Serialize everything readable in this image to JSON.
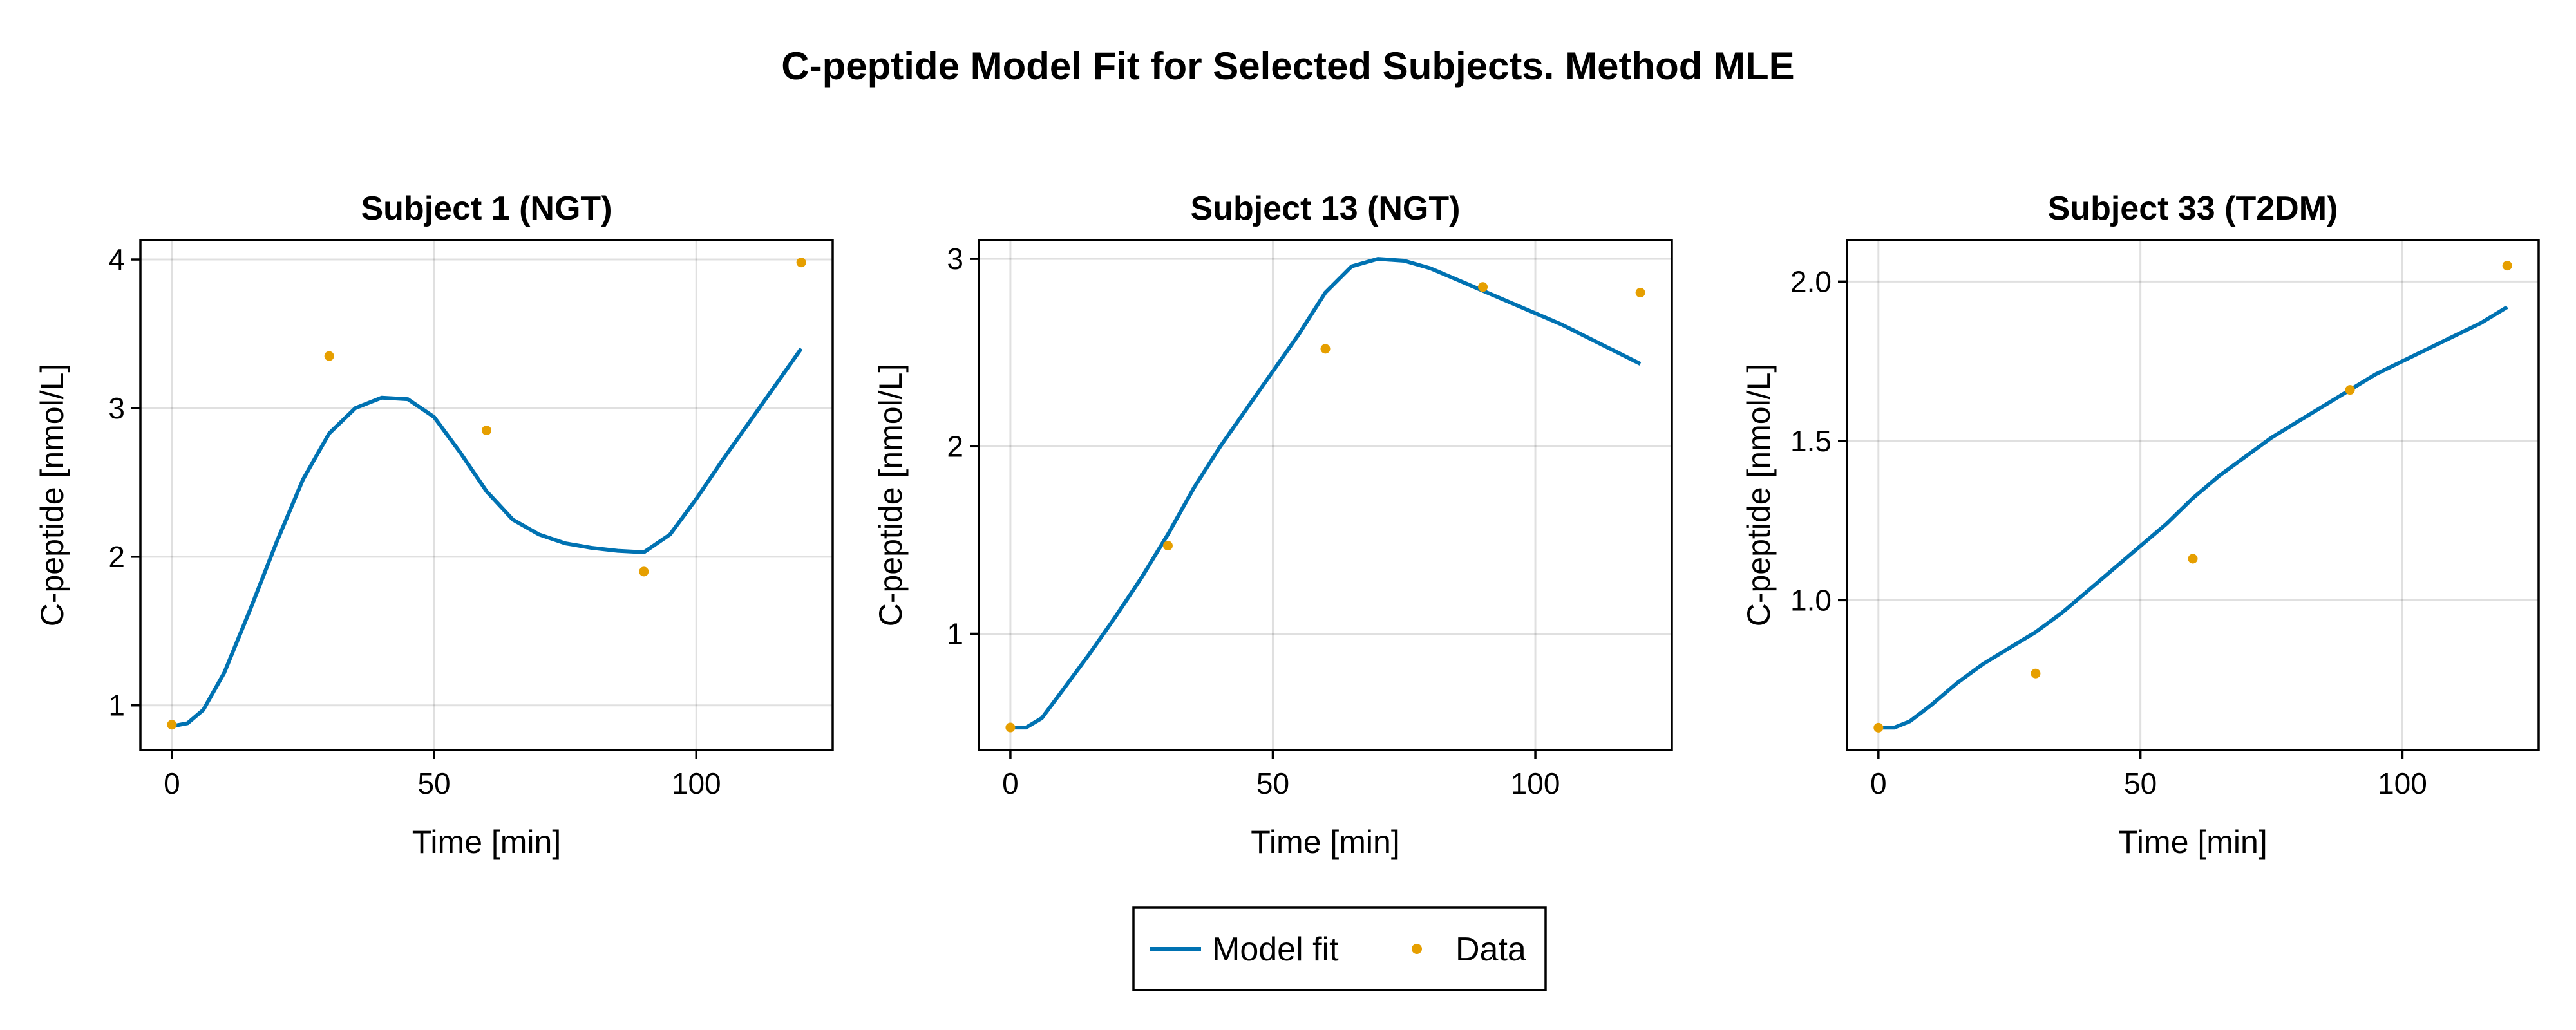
{
  "title": "C-peptide Model Fit for Selected Subjects. Method MLE",
  "colors": {
    "model": "#0072b2",
    "data": "#e69f00"
  },
  "legend": {
    "placement": "bottom-center",
    "entries": [
      "Model fit",
      "Data"
    ]
  },
  "chart_data": [
    {
      "type": "line",
      "title": "Subject 1 (NGT)",
      "xlabel": "Time [min]",
      "ylabel": "C-peptide [nmol/L]",
      "xlim": [
        -6,
        126
      ],
      "ylim": [
        0.7,
        4.13
      ],
      "xticks": [
        0,
        50,
        100
      ],
      "yticks": [
        1,
        2,
        3,
        4
      ],
      "grid": true,
      "series": [
        {
          "name": "Model fit",
          "kind": "line",
          "x": [
            0,
            3,
            6,
            10,
            15,
            20,
            25,
            30,
            35,
            40,
            45,
            50,
            55,
            60,
            65,
            70,
            75,
            80,
            85,
            90,
            95,
            100,
            105,
            110,
            115,
            120
          ],
          "y": [
            0.86,
            0.88,
            0.97,
            1.22,
            1.65,
            2.1,
            2.52,
            2.83,
            3.0,
            3.07,
            3.06,
            2.94,
            2.7,
            2.44,
            2.25,
            2.15,
            2.09,
            2.06,
            2.04,
            2.03,
            2.15,
            2.39,
            2.65,
            2.9,
            3.15,
            3.4
          ]
        },
        {
          "name": "Data",
          "kind": "scatter",
          "x": [
            0,
            30,
            60,
            90,
            120
          ],
          "y": [
            0.87,
            3.35,
            2.85,
            1.9,
            3.98
          ]
        }
      ]
    },
    {
      "type": "line",
      "title": "Subject 13 (NGT)",
      "xlabel": "Time [min]",
      "ylabel": "C-peptide [nmol/L]",
      "xlim": [
        -6,
        126
      ],
      "ylim": [
        0.38,
        3.1
      ],
      "xticks": [
        0,
        50,
        100
      ],
      "yticks": [
        1,
        2,
        3
      ],
      "grid": true,
      "series": [
        {
          "name": "Model fit",
          "kind": "line",
          "x": [
            0,
            3,
            6,
            10,
            15,
            20,
            25,
            30,
            35,
            40,
            45,
            50,
            55,
            60,
            65,
            70,
            75,
            80,
            85,
            90,
            95,
            100,
            105,
            110,
            115,
            120
          ],
          "y": [
            0.5,
            0.5,
            0.55,
            0.7,
            0.89,
            1.09,
            1.3,
            1.53,
            1.78,
            2.0,
            2.2,
            2.4,
            2.6,
            2.82,
            2.96,
            3.0,
            2.99,
            2.95,
            2.89,
            2.83,
            2.77,
            2.71,
            2.65,
            2.58,
            2.51,
            2.44
          ]
        },
        {
          "name": "Data",
          "kind": "scatter",
          "x": [
            0,
            30,
            60,
            90,
            120
          ],
          "y": [
            0.5,
            1.47,
            2.52,
            2.85,
            2.82
          ]
        }
      ]
    },
    {
      "type": "line",
      "title": "Subject 33 (T2DM)",
      "xlabel": "Time [min]",
      "ylabel": "C-peptide [nmol/L]",
      "xlim": [
        -6,
        126
      ],
      "ylim": [
        0.53,
        2.13
      ],
      "xticks": [
        0,
        50,
        100
      ],
      "yticks": [
        1.0,
        1.5,
        2.0
      ],
      "grid": true,
      "series": [
        {
          "name": "Model fit",
          "kind": "line",
          "x": [
            0,
            3,
            6,
            10,
            15,
            20,
            25,
            30,
            35,
            40,
            45,
            50,
            55,
            60,
            65,
            70,
            75,
            80,
            85,
            90,
            95,
            100,
            105,
            110,
            115,
            120
          ],
          "y": [
            0.6,
            0.6,
            0.62,
            0.67,
            0.74,
            0.8,
            0.85,
            0.9,
            0.96,
            1.03,
            1.1,
            1.17,
            1.24,
            1.32,
            1.39,
            1.45,
            1.51,
            1.56,
            1.61,
            1.66,
            1.71,
            1.75,
            1.79,
            1.83,
            1.87,
            1.92
          ]
        },
        {
          "name": "Data",
          "kind": "scatter",
          "x": [
            0,
            30,
            60,
            90,
            120
          ],
          "y": [
            0.6,
            0.77,
            1.13,
            1.66,
            2.05
          ]
        }
      ]
    }
  ]
}
